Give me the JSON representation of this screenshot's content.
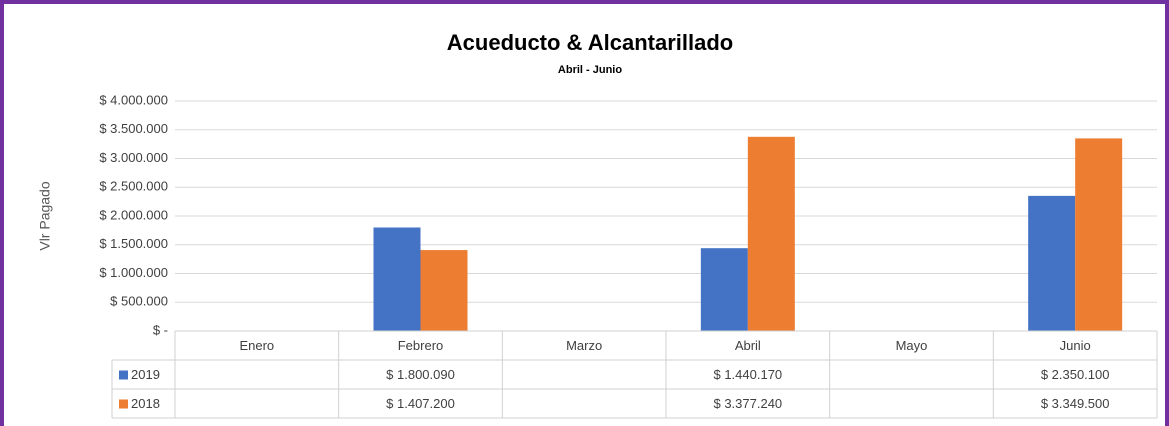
{
  "chart_data": {
    "type": "bar",
    "title": "Acueducto & Alcantarillado",
    "subtitle": "Abril - Junio",
    "y_label": "Vlr Pagado",
    "categories": [
      "Enero",
      "Febrero",
      "Marzo",
      "Abril",
      "Mayo",
      "Junio"
    ],
    "series": [
      {
        "name": "2019",
        "color": "#4472c4",
        "values": [
          null,
          1800090,
          null,
          1440170,
          null,
          2350100
        ],
        "value_labels": [
          null,
          "$ 1.800.090",
          null,
          "$ 1.440.170",
          null,
          "$ 2.350.100"
        ]
      },
      {
        "name": "2018",
        "color": "#ed7d31",
        "values": [
          null,
          1407200,
          null,
          3377240,
          null,
          3349500
        ],
        "value_labels": [
          null,
          "$ 1.407.200",
          null,
          "$ 3.377.240",
          null,
          "$ 3.349.500"
        ]
      }
    ],
    "ylim": [
      0,
      4000000
    ],
    "yticks": [
      {
        "value": 0,
        "label": "$ -"
      },
      {
        "value": 500000,
        "label": "$ 500.000"
      },
      {
        "value": 1000000,
        "label": "$ 1.000.000"
      },
      {
        "value": 1500000,
        "label": "$ 1.500.000"
      },
      {
        "value": 2000000,
        "label": "$ 2.000.000"
      },
      {
        "value": 2500000,
        "label": "$ 2.500.000"
      },
      {
        "value": 3000000,
        "label": "$ 3.000.000"
      },
      {
        "value": 3500000,
        "label": "$ 3.500.000"
      },
      {
        "value": 4000000,
        "label": "$ 4.000.000"
      }
    ],
    "grid": true,
    "data_table": true
  }
}
